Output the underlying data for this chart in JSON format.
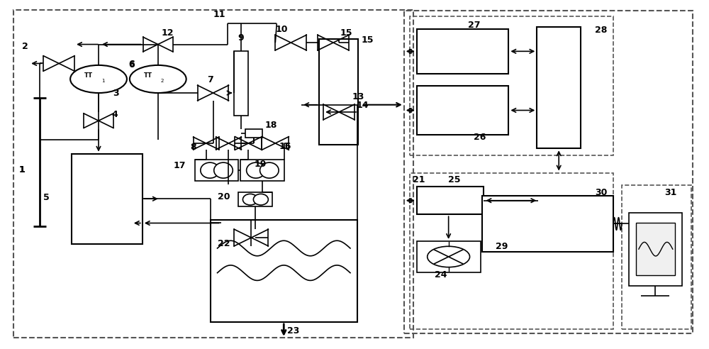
{
  "bg_color": "#ffffff",
  "line_color": "#000000",
  "dashed_color": "#555555"
}
